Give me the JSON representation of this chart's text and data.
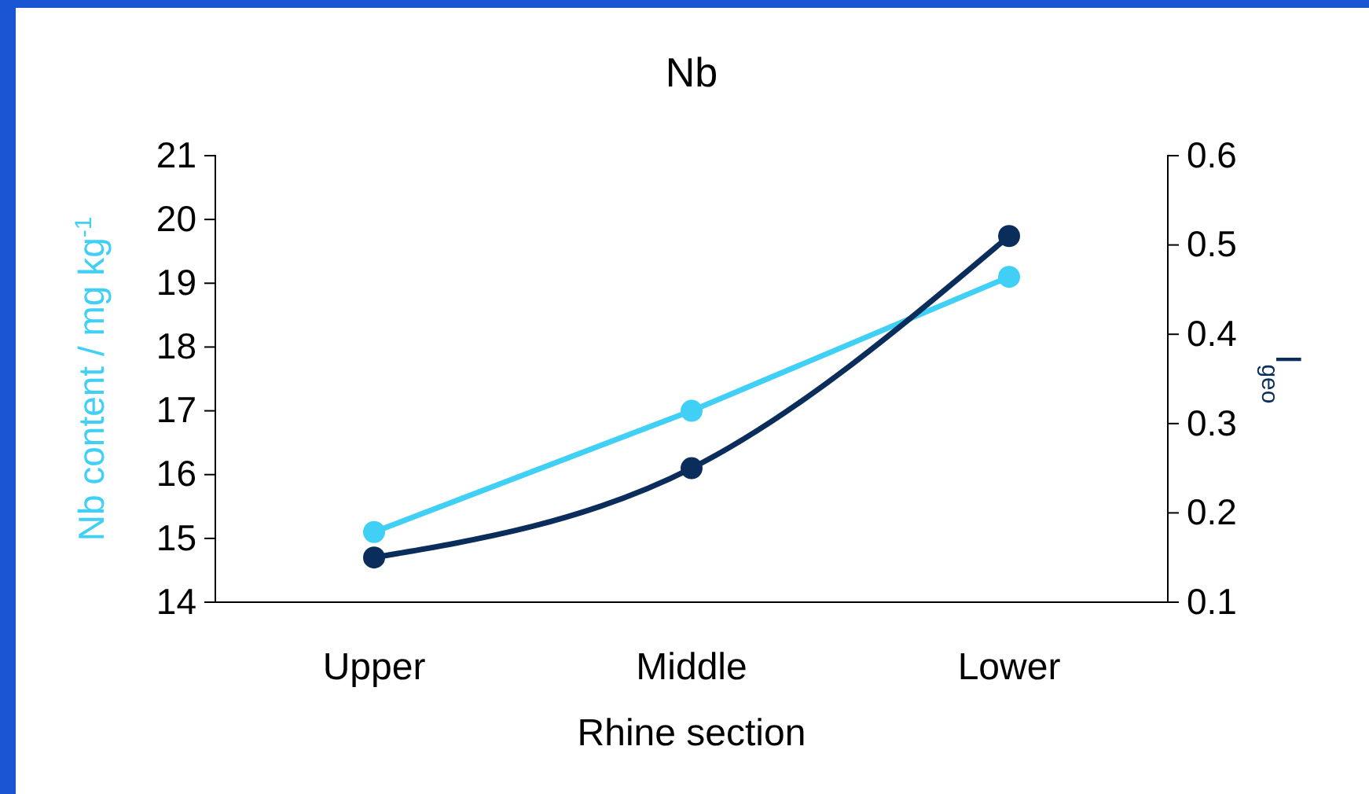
{
  "chart_data": {
    "type": "line",
    "title": "Nb",
    "xlabel": "Rhine section",
    "ylabel": "Nb content / mg kg$^{-1}$",
    "y2label": "I$_{geo}$",
    "categories": [
      "Upper",
      "Middle",
      "Lower"
    ],
    "series": [
      {
        "color": "#40d0f5",
        "values": [
          15.1,
          17.0,
          19.1
        ]
      },
      {
        "color": "#0b2d5c",
        "values": [
          0.15,
          0.25,
          0.51
        ],
        "axis": "y2"
      }
    ],
    "ylim": [
      14,
      21
    ],
    "yticks": [
      14,
      15,
      16,
      17,
      18,
      19,
      20,
      21
    ],
    "y2lim": [
      0.1,
      0.6
    ],
    "y2ticks": [
      0.1,
      0.2,
      0.3,
      0.4,
      0.5,
      0.6
    ],
    "marker": "circle",
    "grid": false
  }
}
